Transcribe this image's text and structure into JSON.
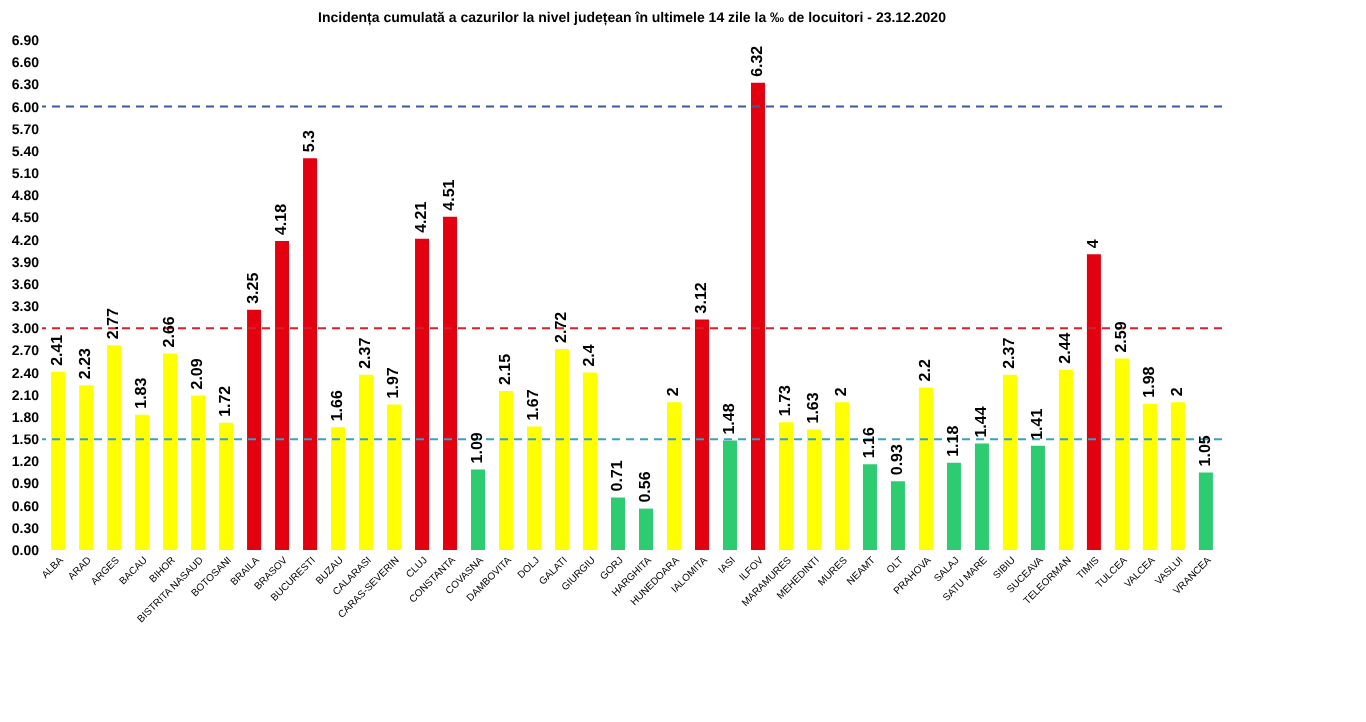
{
  "chart_data": {
    "type": "bar",
    "title": "Incidența cumulată a cazurilor la nivel județean în ultimele 14 zile   la ‰ de locuitori  - 23.12.2020",
    "categories": [
      "ALBA",
      "ARAD",
      "ARGES",
      "BACAU",
      "BIHOR",
      "BISTRITA NASAUD",
      "BOTOSANI",
      "BRAILA",
      "BRASOV",
      "BUCURESTI",
      "BUZAU",
      "CALARASI",
      "CARAS-SEVERIN",
      "CLUJ",
      "CONSTANTA",
      "COVASNA",
      "DAMBOVITA",
      "DOLJ",
      "GALATI",
      "GIURGIU",
      "GORJ",
      "HARGHITA",
      "HUNEDOARA",
      "IALOMITA",
      "IASI",
      "ILFOV",
      "MARAMURES",
      "MEHEDINTI",
      "MURES",
      "NEAMT",
      "OLT",
      "PRAHOVA",
      "SALAJ",
      "SATU MARE",
      "SIBIU",
      "SUCEAVA",
      "TELEORMAN",
      "TIMIS",
      "TULCEA",
      "VALCEA",
      "VASLUI",
      "VRANCEA"
    ],
    "values": [
      2.41,
      2.23,
      2.77,
      1.83,
      2.66,
      2.09,
      1.72,
      3.25,
      4.18,
      5.3,
      1.66,
      2.37,
      1.97,
      4.21,
      4.51,
      1.09,
      2.15,
      1.67,
      2.72,
      2.4,
      0.71,
      0.56,
      2,
      3.12,
      1.48,
      6.32,
      1.73,
      1.63,
      2,
      1.16,
      0.93,
      2.2,
      1.18,
      1.44,
      2.37,
      1.41,
      2.44,
      4,
      2.59,
      1.98,
      2,
      1.05
    ],
    "colors": [
      "#ffff00",
      "#ffff00",
      "#ffff00",
      "#ffff00",
      "#ffff00",
      "#ffff00",
      "#ffff00",
      "#e3000f",
      "#e3000f",
      "#e3000f",
      "#ffff00",
      "#ffff00",
      "#ffff00",
      "#e3000f",
      "#e3000f",
      "#2ecc71",
      "#ffff00",
      "#ffff00",
      "#ffff00",
      "#ffff00",
      "#2ecc71",
      "#2ecc71",
      "#ffff00",
      "#e3000f",
      "#2ecc71",
      "#e3000f",
      "#ffff00",
      "#ffff00",
      "#ffff00",
      "#2ecc71",
      "#2ecc71",
      "#ffff00",
      "#2ecc71",
      "#2ecc71",
      "#ffff00",
      "#2ecc71",
      "#ffff00",
      "#e3000f",
      "#ffff00",
      "#ffff00",
      "#ffff00",
      "#2ecc71"
    ],
    "ylim": [
      0,
      6.9
    ],
    "yticks": [
      {
        "value": 0,
        "label": "0.00"
      },
      {
        "value": 0.3,
        "label": "0.30"
      },
      {
        "value": 0.6,
        "label": "0.60"
      },
      {
        "value": 0.9,
        "label": "0.90"
      },
      {
        "value": 1.2,
        "label": "1.20"
      },
      {
        "value": 1.5,
        "label": "1.50"
      },
      {
        "value": 1.8,
        "label": "1.80"
      },
      {
        "value": 2.1,
        "label": "2.10"
      },
      {
        "value": 2.4,
        "label": "2.40"
      },
      {
        "value": 2.7,
        "label": "2.70"
      },
      {
        "value": 3.0,
        "label": "3.00"
      },
      {
        "value": 3.3,
        "label": "3.30"
      },
      {
        "value": 3.6,
        "label": "3.60"
      },
      {
        "value": 3.9,
        "label": "3.90"
      },
      {
        "value": 4.2,
        "label": "4.20"
      },
      {
        "value": 4.5,
        "label": "4.50"
      },
      {
        "value": 4.8,
        "label": "4.80"
      },
      {
        "value": 5.1,
        "label": "5.10"
      },
      {
        "value": 5.4,
        "label": "5.40"
      },
      {
        "value": 5.7,
        "label": "5.70"
      },
      {
        "value": 6.0,
        "label": "6.00"
      },
      {
        "value": 6.3,
        "label": "6.30"
      },
      {
        "value": 6.6,
        "label": "6.60"
      },
      {
        "value": 6.9,
        "label": "6.90"
      }
    ],
    "ref_lines": [
      {
        "axis": "y",
        "value": 6,
        "color": "#3d5a9e",
        "line_style": "dashed"
      },
      {
        "axis": "y",
        "value": 3,
        "color": "#d9202a",
        "line_style": "dashed"
      },
      {
        "axis": "y",
        "value": 1.5,
        "color": "#3aa0c8",
        "line_style": "dashed"
      }
    ],
    "data_labels": true,
    "grid": false
  }
}
